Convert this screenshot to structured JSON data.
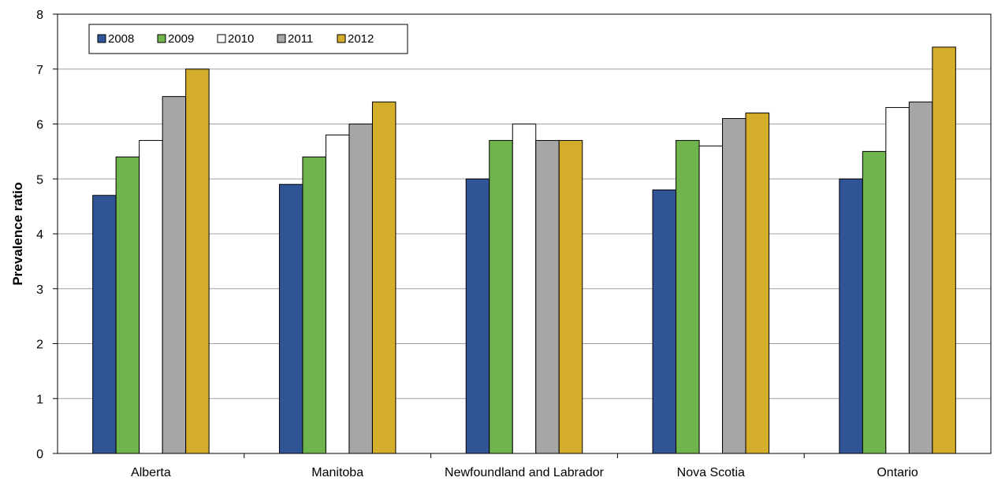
{
  "chart_data": {
    "type": "bar",
    "title": "",
    "xlabel": "",
    "ylabel": "Prevalence ratio",
    "ylim": [
      0,
      8
    ],
    "yticks": [
      0,
      1,
      2,
      3,
      4,
      5,
      6,
      7,
      8
    ],
    "grid": true,
    "legend_position": "top-left",
    "categories": [
      "Alberta",
      "Manitoba",
      "Newfoundland and Labrador",
      "Nova Scotia",
      "Ontario"
    ],
    "series": [
      {
        "name": "2008",
        "color": "#2f5597",
        "values": [
          4.7,
          4.9,
          5.0,
          4.8,
          5.0
        ]
      },
      {
        "name": "2009",
        "color": "#70b44e",
        "values": [
          5.4,
          5.4,
          5.7,
          5.7,
          5.5
        ]
      },
      {
        "name": "2010",
        "color": "#ffffff",
        "values": [
          5.7,
          5.8,
          6.0,
          5.6,
          6.3
        ]
      },
      {
        "name": "2011",
        "color": "#a6a6a6",
        "values": [
          6.5,
          6.0,
          5.7,
          6.1,
          6.4
        ]
      },
      {
        "name": "2012",
        "color": "#d4ad2a",
        "values": [
          7.0,
          6.4,
          5.7,
          6.2,
          7.4
        ]
      }
    ]
  }
}
